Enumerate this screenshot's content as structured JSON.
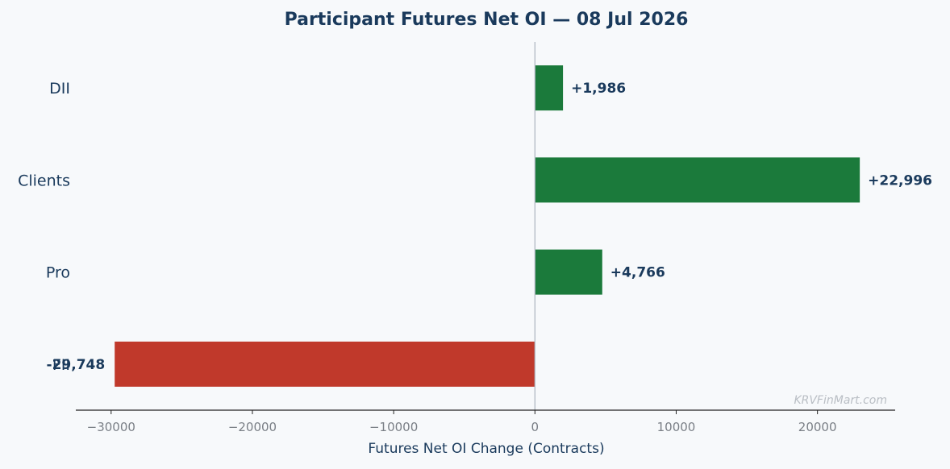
{
  "chart_data": {
    "type": "bar",
    "orientation": "horizontal",
    "title": "Participant Futures Net OI — 08 Jul 2026",
    "xlabel": "Futures Net OI Change (Contracts)",
    "ylabel": "",
    "categories": [
      "DII",
      "Clients",
      "Pro",
      "FII"
    ],
    "values": [
      1986,
      22996,
      4766,
      -29748
    ],
    "value_labels": [
      "+1,986",
      "+22,996",
      "+4,766",
      "-29,748"
    ],
    "xlim": [
      -32500,
      25500
    ],
    "xticks": [
      -30000,
      -20000,
      -10000,
      0,
      10000,
      20000
    ],
    "xtick_labels": [
      "−30000",
      "−20000",
      "−10000",
      "0",
      "10000",
      "20000"
    ],
    "grid": false,
    "colors": {
      "positive": "#1b7a3b",
      "negative": "#c0392b",
      "text": "#1a3a5c",
      "axis": "#222222",
      "zero_line": "#b0b8c1"
    }
  },
  "watermark": "KRVFinMart.com"
}
